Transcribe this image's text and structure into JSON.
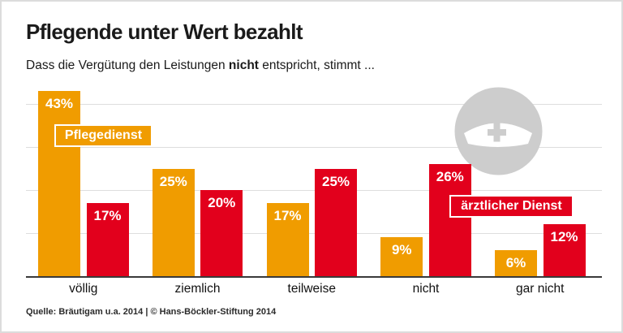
{
  "header": {
    "title": "Pflegende unter Wert bezahlt",
    "subtitle_prefix": "Dass die Vergütung den Leistungen ",
    "subtitle_bold": "nicht",
    "subtitle_suffix": " entspricht, stimmt ..."
  },
  "legend": {
    "series1_label": "Pflegedienst",
    "series2_label": "ärztlicher Dienst"
  },
  "icon": {
    "name": "nurse-cap-icon"
  },
  "colors": {
    "orange": "#F09C00",
    "red": "#E2001C",
    "icon_gray": "#CDCDCD",
    "gridline": "#DEDEDE",
    "axis": "#3A3A3A"
  },
  "footer": {
    "source": "Quelle: Bräutigam u.a. 2014 | © Hans-Böckler-Stiftung 2014"
  },
  "chart_data": {
    "type": "bar",
    "categories": [
      "völlig",
      "ziemlich",
      "teilweise",
      "nicht",
      "gar nicht"
    ],
    "series": [
      {
        "name": "Pflegedienst",
        "color_key": "orange",
        "values": [
          43,
          25,
          17,
          9,
          6
        ]
      },
      {
        "name": "ärztlicher Dienst",
        "color_key": "red",
        "values": [
          17,
          20,
          25,
          26,
          12
        ]
      }
    ],
    "value_suffix": "%",
    "ylabel": "",
    "xlabel": "",
    "ylim": [
      0,
      45
    ],
    "gridlines": [
      10,
      20,
      30,
      40
    ],
    "grid": true,
    "legend_position": "inside"
  }
}
